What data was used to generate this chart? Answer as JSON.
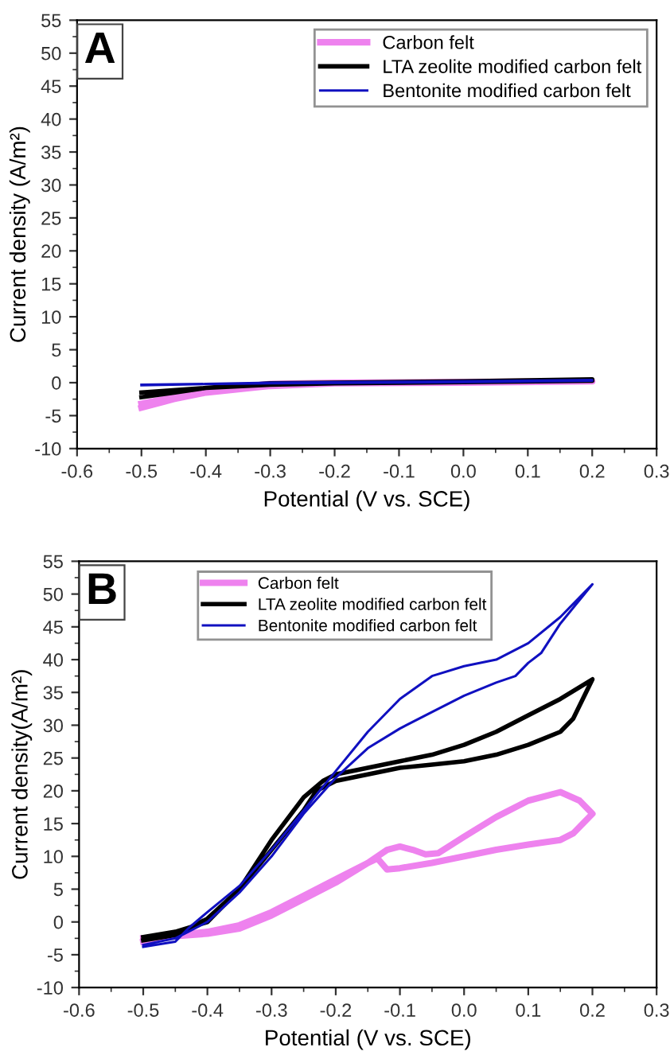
{
  "chart_data": [
    {
      "type": "line",
      "xlabel": "Potential (V vs. SCE)",
      "ylabel": "Current density (A/m²)",
      "annotations": [
        "A"
      ],
      "xlim": [
        -0.6,
        0.3
      ],
      "ylim": [
        -10,
        55
      ],
      "xticks": [
        -0.6,
        -0.5,
        -0.4,
        -0.3,
        -0.2,
        -0.1,
        {
          "value": 0,
          "label": "0.0"
        },
        0.1,
        0.2,
        0.3
      ],
      "yticks": [
        -10,
        -5,
        0,
        5,
        10,
        15,
        20,
        25,
        30,
        35,
        40,
        45,
        50,
        55
      ],
      "legend": "top right",
      "grid": false,
      "marker": "none",
      "line_style": "solid",
      "series": [
        {
          "name": "Carbon felt",
          "color": "#ee82ee",
          "x": [
            -0.5,
            -0.45,
            -0.4,
            -0.35,
            -0.3,
            -0.2,
            0,
            0.2,
            0.2,
            0,
            -0.2,
            -0.3,
            -0.4,
            -0.45,
            -0.5
          ],
          "values": [
            -3.8,
            -2.5,
            -1.5,
            -0.7,
            -0.2,
            0,
            0.1,
            0.2,
            0.2,
            0,
            -0.1,
            -0.5,
            -1.5,
            -2.2,
            -3.2
          ]
        },
        {
          "name": "LTA zeolite modified carbon felt",
          "color": "#000000",
          "x": [
            -0.5,
            -0.45,
            -0.4,
            -0.3,
            -0.2,
            0,
            0.2,
            0.2,
            0,
            -0.2,
            -0.3,
            -0.4,
            -0.5
          ],
          "values": [
            -2.2,
            -1.5,
            -0.8,
            -0.1,
            0,
            0.2,
            0.5,
            0.3,
            0.1,
            -0.1,
            -0.3,
            -0.8,
            -1.5
          ]
        },
        {
          "name": "Bentonite modified carbon felt",
          "color": "#1010c0",
          "x": [
            -0.5,
            -0.4,
            -0.3,
            0,
            0.2,
            0.2,
            0,
            -0.3,
            -0.5
          ],
          "values": [
            -0.4,
            -0.2,
            0,
            0.2,
            0.4,
            0.3,
            0.1,
            -0.1,
            -0.3
          ]
        }
      ]
    },
    {
      "type": "line",
      "xlabel": "Potential (V vs. SCE)",
      "ylabel": "Current density(A/m²)",
      "annotations": [
        "B"
      ],
      "xlim": [
        -0.6,
        0.3
      ],
      "ylim": [
        -10,
        55
      ],
      "xticks": [
        -0.6,
        -0.5,
        -0.4,
        -0.3,
        -0.2,
        -0.1,
        {
          "value": 0,
          "label": "0.0"
        },
        0.1,
        0.2,
        0.3
      ],
      "yticks": [
        -10,
        -5,
        0,
        5,
        10,
        15,
        20,
        25,
        30,
        35,
        40,
        45,
        50,
        55
      ],
      "legend": "top",
      "grid": false,
      "marker": "none",
      "line_style": "solid",
      "series": [
        {
          "name": "Carbon felt",
          "color": "#ee82ee",
          "x": [
            -0.5,
            -0.45,
            -0.4,
            -0.35,
            -0.3,
            -0.25,
            -0.2,
            -0.15,
            -0.12,
            -0.1,
            -0.08,
            -0.06,
            -0.04,
            0,
            0.05,
            0.1,
            0.15,
            0.18,
            0.2,
            0.17,
            0.15,
            0.1,
            0.05,
            0,
            -0.05,
            -0.1,
            -0.12,
            -0.135,
            -0.15,
            -0.2,
            -0.25,
            -0.3,
            -0.35,
            -0.4,
            -0.5
          ],
          "values": [
            -3,
            -2,
            -1.5,
            -0.5,
            1.5,
            4,
            6.5,
            9,
            11,
            11.5,
            11,
            10.3,
            10.5,
            13,
            16,
            18.5,
            19.8,
            18.5,
            16.5,
            13.5,
            12.5,
            11.8,
            11,
            10,
            9,
            8.2,
            8,
            9.7,
            9,
            6,
            3.5,
            1,
            -1,
            -1.8,
            -2.5
          ]
        },
        {
          "name": "LTA zeolite modified carbon felt",
          "color": "#000000",
          "x": [
            -0.5,
            -0.45,
            -0.4,
            -0.35,
            -0.3,
            -0.25,
            -0.22,
            -0.2,
            -0.15,
            -0.1,
            -0.05,
            0,
            0.05,
            0.1,
            0.15,
            0.2,
            0.17,
            0.15,
            0.1,
            0.05,
            0,
            -0.05,
            -0.1,
            -0.15,
            -0.2,
            -0.23,
            -0.25,
            -0.3,
            -0.35,
            -0.4,
            -0.45,
            -0.5
          ],
          "values": [
            -2.3,
            -1.5,
            0,
            5,
            12.5,
            19,
            21.5,
            22.5,
            23.5,
            24.5,
            25.5,
            27,
            29,
            31.5,
            34,
            37,
            31,
            29,
            27,
            25.5,
            24.5,
            24,
            23.5,
            22.5,
            21.5,
            20,
            17,
            11,
            5,
            0.5,
            -2,
            -2.8
          ]
        },
        {
          "name": "Bentonite modified carbon felt",
          "color": "#1010c0",
          "x": [
            -0.5,
            -0.45,
            -0.43,
            -0.4,
            -0.35,
            -0.3,
            -0.25,
            -0.2,
            -0.15,
            -0.1,
            -0.05,
            0,
            0.05,
            0.1,
            0.15,
            0.2,
            0.15,
            0.12,
            0.1,
            0.08,
            0.05,
            0,
            -0.05,
            -0.1,
            -0.15,
            -0.2,
            -0.25,
            -0.3,
            -0.35,
            -0.4,
            -0.43,
            -0.45,
            -0.5
          ],
          "values": [
            -3.8,
            -3,
            -1,
            1.5,
            5.5,
            11,
            17,
            23,
            29,
            34,
            37.5,
            39,
            40,
            42.5,
            46.5,
            51.5,
            45.5,
            41,
            39.5,
            37.5,
            36.5,
            34.5,
            32,
            29.5,
            26.5,
            22,
            16.5,
            10,
            4.5,
            0,
            -1.5,
            -2.5,
            -3.5
          ]
        }
      ]
    }
  ]
}
